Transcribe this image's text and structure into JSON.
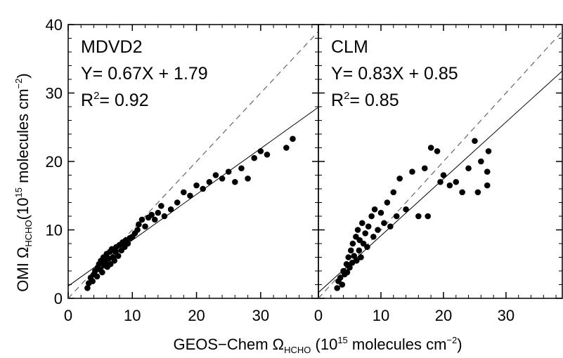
{
  "chart_data": [
    {
      "type": "scatter",
      "panel": "left",
      "annotations": [
        "MDVD2",
        "Y= 0.67X + 1.79",
        "R²= 0.92"
      ],
      "fit": {
        "slope": 0.67,
        "intercept": 1.79
      },
      "xlim": [
        0,
        39
      ],
      "ylim": [
        0,
        40
      ],
      "x_ticks": [
        0,
        10,
        20,
        30
      ],
      "y_ticks": [
        0,
        10,
        20,
        30,
        40
      ],
      "reference_line": "1:1 dashed",
      "points": [
        [
          3.0,
          1.5
        ],
        [
          3.2,
          2.2
        ],
        [
          3.5,
          3.0
        ],
        [
          3.8,
          2.5
        ],
        [
          4.0,
          3.5
        ],
        [
          4.2,
          4.0
        ],
        [
          4.5,
          3.2
        ],
        [
          4.6,
          4.5
        ],
        [
          4.8,
          5.0
        ],
        [
          5.0,
          4.2
        ],
        [
          5.1,
          5.5
        ],
        [
          5.3,
          3.8
        ],
        [
          5.5,
          6.0
        ],
        [
          5.6,
          4.8
        ],
        [
          5.8,
          5.2
        ],
        [
          6.0,
          6.5
        ],
        [
          6.1,
          4.6
        ],
        [
          6.3,
          5.8
        ],
        [
          6.5,
          6.8
        ],
        [
          6.6,
          5.0
        ],
        [
          6.8,
          7.2
        ],
        [
          7.0,
          6.0
        ],
        [
          7.2,
          5.5
        ],
        [
          7.4,
          6.8
        ],
        [
          7.5,
          7.5
        ],
        [
          7.8,
          6.2
        ],
        [
          8.0,
          7.8
        ],
        [
          8.3,
          7.0
        ],
        [
          8.5,
          8.2
        ],
        [
          8.8,
          7.5
        ],
        [
          9.0,
          8.5
        ],
        [
          9.3,
          8.0
        ],
        [
          9.6,
          8.8
        ],
        [
          10.0,
          9.0
        ],
        [
          10.4,
          9.5
        ],
        [
          10.8,
          10.0
        ],
        [
          11.0,
          10.8
        ],
        [
          11.5,
          11.5
        ],
        [
          12.0,
          10.5
        ],
        [
          12.5,
          11.8
        ],
        [
          13.0,
          12.2
        ],
        [
          13.5,
          11.5
        ],
        [
          14.0,
          12.5
        ],
        [
          14.5,
          13.5
        ],
        [
          15.0,
          12.0
        ],
        [
          16.0,
          13.0
        ],
        [
          17.0,
          14.0
        ],
        [
          18.0,
          15.5
        ],
        [
          19.0,
          15.0
        ],
        [
          20.0,
          16.5
        ],
        [
          21.0,
          16.0
        ],
        [
          22.0,
          17.0
        ],
        [
          23.0,
          18.0
        ],
        [
          24.0,
          17.5
        ],
        [
          25.0,
          18.5
        ],
        [
          26.0,
          17.0
        ],
        [
          27.0,
          19.0
        ],
        [
          28.0,
          17.5
        ],
        [
          29.0,
          20.5
        ],
        [
          30.0,
          21.5
        ],
        [
          31.0,
          21.0
        ],
        [
          34.0,
          22.0
        ],
        [
          35.0,
          23.3
        ]
      ]
    },
    {
      "type": "scatter",
      "panel": "right",
      "annotations": [
        "CLM",
        "Y= 0.83X + 0.85",
        "R²= 0.85"
      ],
      "fit": {
        "slope": 0.83,
        "intercept": 0.85
      },
      "xlim": [
        0,
        39
      ],
      "ylim": [
        0,
        40
      ],
      "x_ticks": [
        0,
        10,
        20,
        30
      ],
      "y_ticks": [
        0,
        10,
        20,
        30,
        40
      ],
      "reference_line": "1:1 dashed",
      "points": [
        [
          3.0,
          1.5
        ],
        [
          3.2,
          2.5
        ],
        [
          3.5,
          3.0
        ],
        [
          3.8,
          2.0
        ],
        [
          4.0,
          4.0
        ],
        [
          4.2,
          3.5
        ],
        [
          4.5,
          5.0
        ],
        [
          4.6,
          3.8
        ],
        [
          4.8,
          6.0
        ],
        [
          5.0,
          4.5
        ],
        [
          5.2,
          7.0
        ],
        [
          5.4,
          5.2
        ],
        [
          5.5,
          8.0
        ],
        [
          5.7,
          6.2
        ],
        [
          6.0,
          9.0
        ],
        [
          6.1,
          5.5
        ],
        [
          6.3,
          10.0
        ],
        [
          6.5,
          7.0
        ],
        [
          6.6,
          8.5
        ],
        [
          6.8,
          6.0
        ],
        [
          7.0,
          11.0
        ],
        [
          7.2,
          8.0
        ],
        [
          7.5,
          9.5
        ],
        [
          7.8,
          7.5
        ],
        [
          8.0,
          10.5
        ],
        [
          8.5,
          12.0
        ],
        [
          8.8,
          9.0
        ],
        [
          9.0,
          13.0
        ],
        [
          9.5,
          10.0
        ],
        [
          10.0,
          12.5
        ],
        [
          10.5,
          11.0
        ],
        [
          11.0,
          14.0
        ],
        [
          11.5,
          10.5
        ],
        [
          12.0,
          15.5
        ],
        [
          12.5,
          12.0
        ],
        [
          13.0,
          17.5
        ],
        [
          14.0,
          13.0
        ],
        [
          15.0,
          18.5
        ],
        [
          16.0,
          12.0
        ],
        [
          17.0,
          19.0
        ],
        [
          17.5,
          12.0
        ],
        [
          18.0,
          22.0
        ],
        [
          19.0,
          21.5
        ],
        [
          19.5,
          17.0
        ],
        [
          20.0,
          18.0
        ],
        [
          21.0,
          16.5
        ],
        [
          22.0,
          17.0
        ],
        [
          23.0,
          15.5
        ],
        [
          24.0,
          19.0
        ],
        [
          25.0,
          23.0
        ],
        [
          25.5,
          15.5
        ],
        [
          26.0,
          20.0
        ],
        [
          27.0,
          16.5
        ],
        [
          27.0,
          18.5
        ],
        [
          27.2,
          21.5
        ]
      ]
    }
  ],
  "axes": {
    "y_title": "OMI Ω",
    "y_subscript": "HCHO",
    "y_units_prefix": "(10",
    "y_units_sup": "15",
    "y_units_mid": " molecules cm",
    "y_units_sup2": "−2",
    "y_units_suffix": ")",
    "x_title": "GEOS−Chem Ω",
    "x_subscript": "HCHO",
    "x_units_prefix": " (10",
    "x_units_sup": "15",
    "x_units_mid": " molecules cm",
    "x_units_sup2": "−2",
    "x_units_suffix": ")"
  },
  "colors": {
    "points": "#000000",
    "lines": "#000000",
    "dashed": "#666666"
  }
}
